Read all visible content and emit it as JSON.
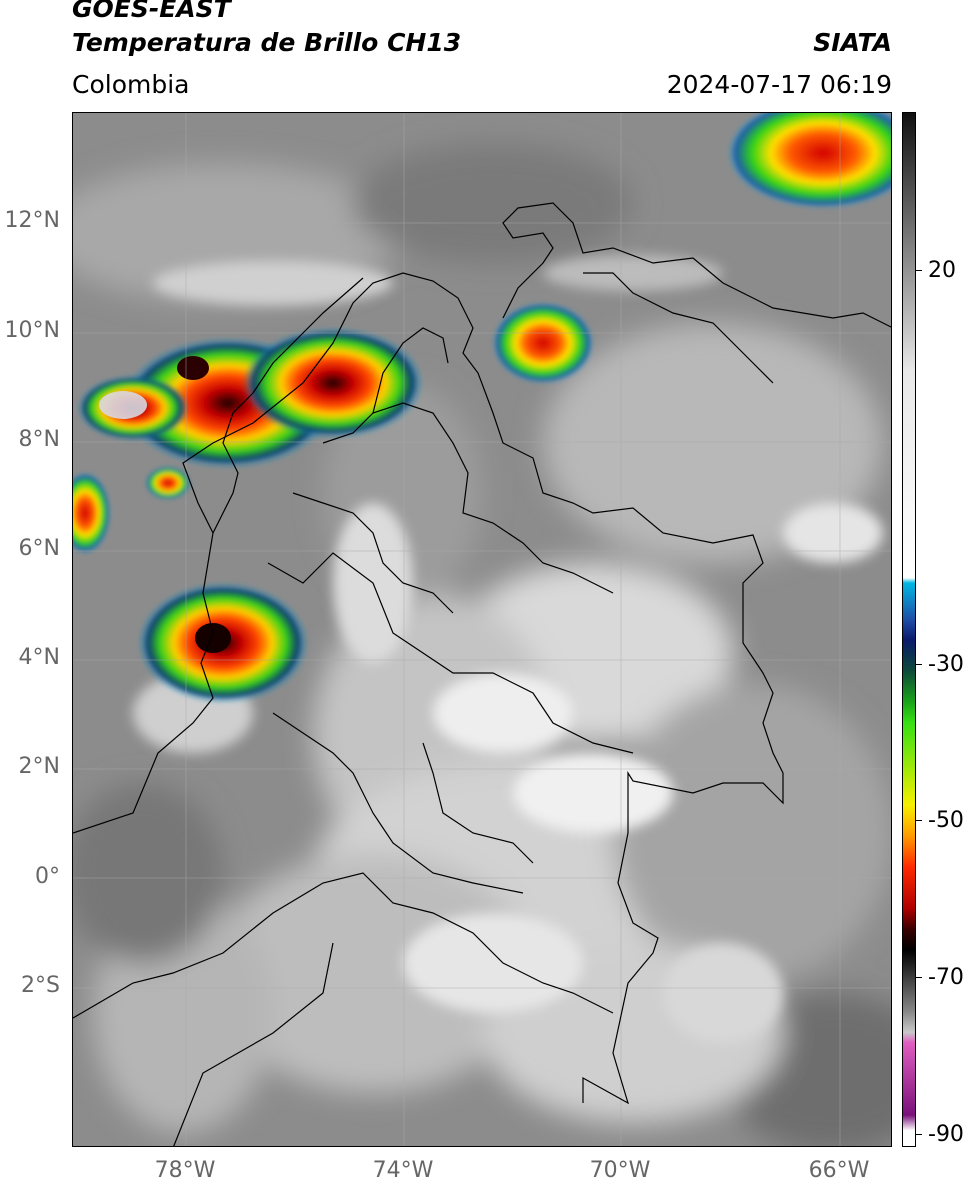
{
  "header": {
    "satellite": "GOES-EAST",
    "product": "Temperatura de Brillo CH13",
    "brand": "SIATA",
    "region": "Colombia",
    "datetime": "2024-07-17 06:19"
  },
  "axes": {
    "lat_labels": [
      "12°N",
      "10°N",
      "8°N",
      "6°N",
      "4°N",
      "2°N",
      "0°",
      "2°S"
    ],
    "lon_labels": [
      "78°W",
      "74°W",
      "70°W",
      "66°W"
    ]
  },
  "colorbar": {
    "tick_labels": [
      "20",
      "-30",
      "-50",
      "-70",
      "-90"
    ],
    "stops": [
      {
        "c": "#111111"
      },
      {
        "c": "#555555"
      },
      {
        "c": "#9a9a9a"
      },
      {
        "c": "#e8e8e8"
      },
      {
        "c": "#ffffff"
      },
      {
        "c": "#00b7e3"
      },
      {
        "c": "#1e4fa8"
      },
      {
        "c": "#0c1a6b"
      },
      {
        "c": "#0d4a3a"
      },
      {
        "c": "#19a319"
      },
      {
        "c": "#35e014"
      },
      {
        "c": "#f6f000"
      },
      {
        "c": "#ff9a00"
      },
      {
        "c": "#ff2a00"
      },
      {
        "c": "#b00000"
      },
      {
        "c": "#3a0000"
      },
      {
        "c": "#000000"
      },
      {
        "c": "#888888"
      },
      {
        "c": "#c8c8c8"
      },
      {
        "c": "#e05ec0"
      },
      {
        "c": "#7a117a"
      },
      {
        "c": "#ffffff"
      }
    ]
  }
}
